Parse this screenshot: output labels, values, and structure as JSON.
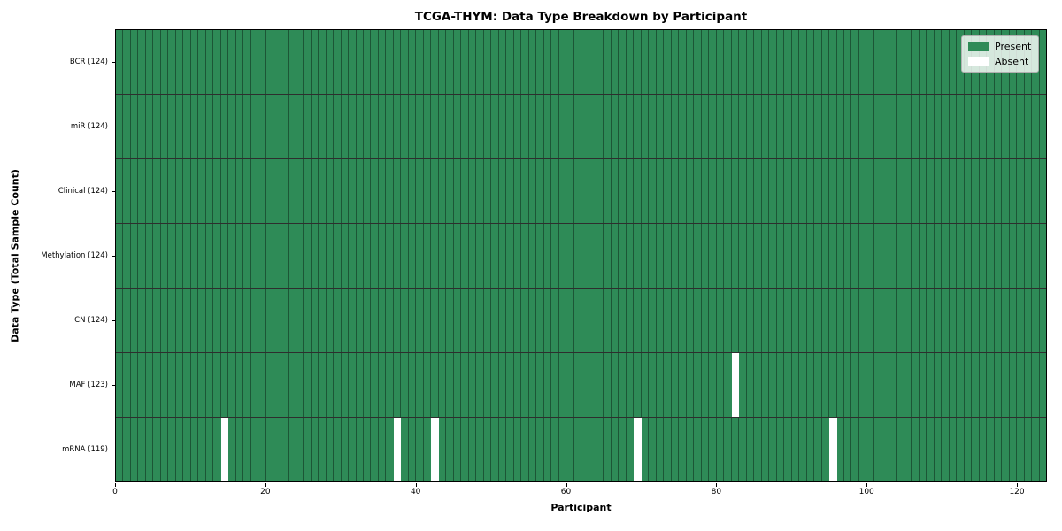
{
  "chart_data": {
    "type": "heatmap",
    "title": "TCGA-THYM: Data Type Breakdown by Participant",
    "xlabel": "Participant",
    "ylabel": "Data Type (Total Sample Count)",
    "x_range": [
      0,
      124
    ],
    "x_ticks": [
      0,
      20,
      40,
      60,
      80,
      100,
      120
    ],
    "n_participants": 124,
    "rows": [
      {
        "data_type": "BCR",
        "label": "BCR (124)",
        "total_samples": 124,
        "absent_participants": []
      },
      {
        "data_type": "miR",
        "label": "miR (124)",
        "total_samples": 124,
        "absent_participants": []
      },
      {
        "data_type": "Clinical",
        "label": "Clinical (124)",
        "total_samples": 124,
        "absent_participants": []
      },
      {
        "data_type": "Methylation",
        "label": "Methylation (124)",
        "total_samples": 124,
        "absent_participants": []
      },
      {
        "data_type": "CN",
        "label": "CN (124)",
        "total_samples": 124,
        "absent_participants": []
      },
      {
        "data_type": "MAF",
        "label": "MAF (123)",
        "total_samples": 123,
        "absent_participants": [
          82
        ]
      },
      {
        "data_type": "mRNA",
        "label": "mRNA (119)",
        "total_samples": 119,
        "absent_participants": [
          14,
          37,
          42,
          69,
          95
        ]
      }
    ],
    "legend": [
      {
        "label": "Present",
        "color": "#2e8b57"
      },
      {
        "label": "Absent",
        "color": "#ffffff"
      }
    ],
    "colors": {
      "present": "#2e8b57",
      "absent": "#ffffff"
    },
    "layout": {
      "grid": "7 rows x 124 columns",
      "legend_position": "upper right",
      "gridlines": "cell edges"
    }
  }
}
